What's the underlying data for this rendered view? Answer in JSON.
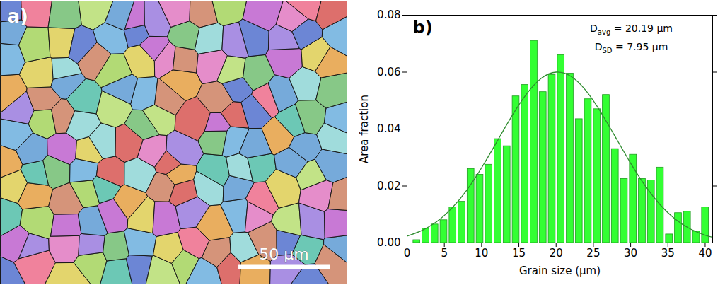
{
  "chart_data": [
    {
      "type": "image",
      "title": "a)",
      "xlim": [
        0,
        190
      ],
      "ylim": [
        0,
        155
      ],
      "tick_labels": false,
      "scale_bar": {
        "length": 50,
        "label": "50 µm"
      }
    },
    {
      "type": "histogram",
      "title": "b)",
      "x_label": "Grain size (µm)",
      "y_label": "Area fraction",
      "bins": [
        0.7,
        1.91,
        3.12,
        4.33,
        5.54,
        6.75,
        7.96,
        9.17,
        10.38,
        11.59,
        12.8,
        14.01,
        15.22,
        16.43,
        17.64,
        18.85,
        20.06,
        21.27,
        22.48,
        23.69,
        24.9,
        26.11,
        27.32,
        28.53,
        29.74,
        30.95,
        32.16,
        33.37,
        34.58,
        35.79,
        37,
        38.21,
        39.42,
        40.63
      ],
      "values": [
        0.001,
        0.005,
        0.0065,
        0.008,
        0.0125,
        0.0145,
        0.026,
        0.024,
        0.0275,
        0.0365,
        0.034,
        0.0515,
        0.0555,
        0.071,
        0.053,
        0.059,
        0.066,
        0.0595,
        0.0435,
        0.0505,
        0.047,
        0.052,
        0.033,
        0.0225,
        0.031,
        0.0225,
        0.022,
        0.0265,
        0.003,
        0.0105,
        0.011,
        0.004,
        0.0125
      ],
      "color": "#33ff33",
      "fit": {
        "type": "line",
        "color": "#2e8b2e",
        "x": [
          0,
          2,
          4,
          6,
          8,
          10,
          12,
          14,
          16,
          18,
          20,
          22,
          24,
          26,
          28,
          30,
          32,
          34,
          36,
          38,
          40,
          41
        ],
        "values": [
          0.0024,
          0.0044,
          0.0075,
          0.0122,
          0.0185,
          0.0264,
          0.0353,
          0.0443,
          0.0522,
          0.0578,
          0.06,
          0.0585,
          0.0535,
          0.0459,
          0.037,
          0.028,
          0.0199,
          0.0133,
          0.0083,
          0.0049,
          0.0027,
          0.002
        ]
      },
      "xlim": [
        0,
        41
      ],
      "xticks": [
        0,
        5,
        10,
        15,
        20,
        25,
        30,
        35,
        40
      ],
      "ylim": [
        0,
        0.08
      ],
      "yticks": [
        {
          "value": 0,
          "label": "0.00"
        },
        0.02,
        0.04,
        0.06,
        0.08
      ],
      "annotations": [
        {
          "main": "D",
          "sub": "avg",
          "text": " = 20.19 µm"
        },
        {
          "main": "D",
          "sub": "SD",
          "text": " = 7.95 µm"
        }
      ]
    }
  ]
}
